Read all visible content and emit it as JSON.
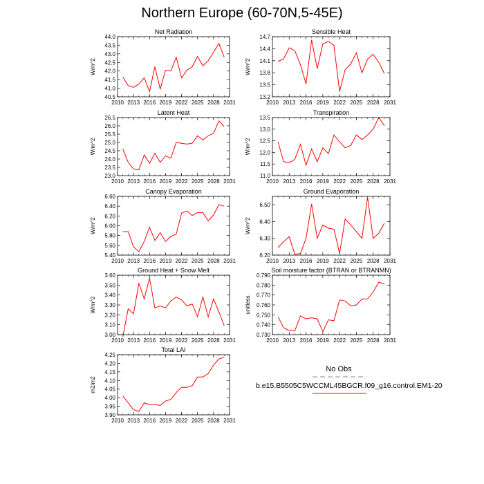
{
  "title": "Northern Europe (60-70N,5-45E)",
  "colors": {
    "case_line": "#ff0000",
    "obs_line": "#a0a0c0",
    "axis": "#000000"
  },
  "legend": {
    "obs_label": "No Obs",
    "case_label": "b.e15.B5505C5WCCML45BGCR.f09_g16.control.EM1-20"
  },
  "chart_data": [
    {
      "type": "line",
      "title": "Net Radiation",
      "xlabel": "",
      "ylabel": "W/m^2",
      "xlim": [
        2010,
        2031
      ],
      "ylim": [
        40.5,
        44.0
      ],
      "xticks": [
        2010,
        2013,
        2016,
        2019,
        2022,
        2025,
        2028,
        2031
      ],
      "yticks": [
        40.5,
        41.0,
        41.5,
        42.0,
        42.5,
        43.0,
        43.5,
        44.0
      ],
      "ydec": 1,
      "x": [
        2011,
        2012,
        2013,
        2014,
        2015,
        2016,
        2017,
        2018,
        2019,
        2020,
        2021,
        2022,
        2023,
        2024,
        2025,
        2026,
        2027,
        2028,
        2029,
        2030
      ],
      "series": [
        {
          "values": [
            41.65,
            41.15,
            41.05,
            41.25,
            41.6,
            40.8,
            42.25,
            40.95,
            42.05,
            42.0,
            42.8,
            41.6,
            42.05,
            42.25,
            42.85,
            42.3,
            42.6,
            43.1,
            43.6,
            42.8
          ]
        }
      ]
    },
    {
      "type": "line",
      "title": "Sensible Heat",
      "xlabel": "",
      "ylabel": "W/m^2",
      "xlim": [
        2010,
        2031
      ],
      "ylim": [
        13.2,
        14.7
      ],
      "xticks": [
        2010,
        2013,
        2016,
        2019,
        2022,
        2025,
        2028,
        2031
      ],
      "yticks": [
        13.2,
        13.5,
        13.8,
        14.1,
        14.4,
        14.7
      ],
      "ydec": 1,
      "x": [
        2011,
        2012,
        2013,
        2014,
        2015,
        2016,
        2017,
        2018,
        2019,
        2020,
        2021,
        2022,
        2023,
        2024,
        2025,
        2026,
        2027,
        2028,
        2029,
        2030
      ],
      "series": [
        {
          "values": [
            14.08,
            14.15,
            14.42,
            14.35,
            14.0,
            13.52,
            14.62,
            13.9,
            14.52,
            14.58,
            14.48,
            13.33,
            13.88,
            14.02,
            14.3,
            13.8,
            14.14,
            14.26,
            14.06,
            13.78
          ]
        }
      ]
    },
    {
      "type": "line",
      "title": "Latent Heat",
      "xlabel": "",
      "ylabel": "W/m^2",
      "xlim": [
        2010,
        2031
      ],
      "ylim": [
        23.0,
        26.5
      ],
      "xticks": [
        2010,
        2013,
        2016,
        2019,
        2022,
        2025,
        2028,
        2031
      ],
      "yticks": [
        23.0,
        23.5,
        24.0,
        24.5,
        25.0,
        25.5,
        26.0,
        26.5
      ],
      "ydec": 1,
      "x": [
        2011,
        2012,
        2013,
        2014,
        2015,
        2016,
        2017,
        2018,
        2019,
        2020,
        2021,
        2022,
        2023,
        2024,
        2025,
        2026,
        2027,
        2028,
        2029,
        2030
      ],
      "series": [
        {
          "values": [
            24.6,
            23.8,
            23.4,
            23.35,
            24.25,
            23.75,
            24.35,
            23.8,
            24.2,
            24.05,
            25.0,
            24.95,
            24.9,
            24.95,
            25.4,
            25.15,
            25.4,
            25.55,
            26.3,
            25.95
          ]
        }
      ]
    },
    {
      "type": "line",
      "title": "Transpiration",
      "xlabel": "",
      "ylabel": "W/m^2",
      "xlim": [
        2010,
        2031
      ],
      "ylim": [
        11.0,
        13.5
      ],
      "xticks": [
        2010,
        2013,
        2016,
        2019,
        2022,
        2025,
        2028,
        2031
      ],
      "yticks": [
        11.0,
        11.5,
        12.0,
        12.5,
        13.0,
        13.5
      ],
      "ydec": 1,
      "x": [
        2011,
        2012,
        2013,
        2014,
        2015,
        2016,
        2017,
        2018,
        2019,
        2020,
        2021,
        2022,
        2023,
        2024,
        2025,
        2026,
        2027,
        2028,
        2029,
        2030
      ],
      "series": [
        {
          "values": [
            12.45,
            11.6,
            11.55,
            11.7,
            12.35,
            11.45,
            12.15,
            11.6,
            12.2,
            11.95,
            12.75,
            12.45,
            12.2,
            12.3,
            12.75,
            12.55,
            12.75,
            13.0,
            13.5,
            13.15
          ]
        }
      ]
    },
    {
      "type": "line",
      "title": "Canopy Evaporation",
      "xlabel": "",
      "ylabel": "W/m^2",
      "xlim": [
        2010,
        2031
      ],
      "ylim": [
        5.4,
        6.6
      ],
      "xticks": [
        2010,
        2013,
        2016,
        2019,
        2022,
        2025,
        2028,
        2031
      ],
      "yticks": [
        5.4,
        5.6,
        5.8,
        6.0,
        6.2,
        6.4,
        6.6
      ],
      "ydec": 2,
      "x": [
        2011,
        2012,
        2013,
        2014,
        2015,
        2016,
        2017,
        2018,
        2019,
        2020,
        2021,
        2022,
        2023,
        2024,
        2025,
        2026,
        2027,
        2028,
        2029,
        2030
      ],
      "series": [
        {
          "values": [
            5.88,
            5.88,
            5.57,
            5.47,
            5.68,
            5.97,
            5.7,
            5.86,
            5.68,
            5.78,
            5.83,
            6.26,
            6.3,
            6.21,
            6.27,
            6.27,
            6.1,
            6.22,
            6.43,
            6.4
          ]
        }
      ]
    },
    {
      "type": "line",
      "title": "Ground Evaporation",
      "xlabel": "",
      "ylabel": "W/m^2",
      "xlim": [
        2010,
        2031
      ],
      "ylim": [
        6.2,
        6.55
      ],
      "xticks": [
        2010,
        2013,
        2016,
        2019,
        2022,
        2025,
        2028,
        2031
      ],
      "yticks": [
        6.2,
        6.3,
        6.4,
        6.5
      ],
      "ydec": 2,
      "x": [
        2011,
        2012,
        2013,
        2014,
        2015,
        2016,
        2017,
        2018,
        2019,
        2020,
        2021,
        2022,
        2023,
        2024,
        2025,
        2026,
        2027,
        2028,
        2029,
        2030
      ],
      "series": [
        {
          "values": [
            6.245,
            6.28,
            6.31,
            6.205,
            6.21,
            6.3,
            6.505,
            6.3,
            6.38,
            6.36,
            6.355,
            6.21,
            6.415,
            6.38,
            6.34,
            6.3,
            6.545,
            6.3,
            6.33,
            6.39
          ]
        }
      ]
    },
    {
      "type": "line",
      "title": "Ground Heat + Snow Melt",
      "xlabel": "",
      "ylabel": "W/m^2",
      "xlim": [
        2010,
        2031
      ],
      "ylim": [
        3.0,
        3.6
      ],
      "xticks": [
        2010,
        2013,
        2016,
        2019,
        2022,
        2025,
        2028,
        2031
      ],
      "yticks": [
        3.0,
        3.1,
        3.2,
        3.3,
        3.4,
        3.5,
        3.6
      ],
      "ydec": 2,
      "x": [
        2011,
        2012,
        2013,
        2014,
        2015,
        2016,
        2017,
        2018,
        2019,
        2020,
        2021,
        2022,
        2023,
        2024,
        2025,
        2026,
        2027,
        2028,
        2029,
        2030
      ],
      "series": [
        {
          "values": [
            2.98,
            3.26,
            3.21,
            3.52,
            3.36,
            3.57,
            3.27,
            3.29,
            3.27,
            3.34,
            3.38,
            3.35,
            3.29,
            3.31,
            3.18,
            3.38,
            3.18,
            3.36,
            3.23,
            3.09
          ]
        }
      ]
    },
    {
      "type": "line",
      "title": "Soil moisture factor (BTRAN or BTRANMN)",
      "xlabel": "",
      "ylabel": "unitless",
      "xlim": [
        2010,
        2031
      ],
      "ylim": [
        0.73,
        0.79
      ],
      "xticks": [
        2010,
        2013,
        2016,
        2019,
        2022,
        2025,
        2028,
        2031
      ],
      "yticks": [
        0.73,
        0.74,
        0.75,
        0.76,
        0.77,
        0.78,
        0.79
      ],
      "ydec": 3,
      "x": [
        2011,
        2012,
        2013,
        2014,
        2015,
        2016,
        2017,
        2018,
        2019,
        2020,
        2021,
        2022,
        2023,
        2024,
        2025,
        2026,
        2027,
        2028,
        2029,
        2030
      ],
      "series": [
        {
          "values": [
            0.748,
            0.737,
            0.734,
            0.734,
            0.749,
            0.746,
            0.747,
            0.746,
            0.733,
            0.745,
            0.744,
            0.765,
            0.764,
            0.759,
            0.76,
            0.766,
            0.766,
            0.773,
            0.783,
            0.781
          ]
        }
      ]
    },
    {
      "type": "line",
      "title": "Total LAI",
      "xlabel": "",
      "ylabel": "m2/m2",
      "xlim": [
        2010,
        2031
      ],
      "ylim": [
        3.9,
        4.25
      ],
      "xticks": [
        2010,
        2013,
        2016,
        2019,
        2022,
        2025,
        2028,
        2031
      ],
      "yticks": [
        3.9,
        3.95,
        4.0,
        4.05,
        4.1,
        4.15,
        4.2,
        4.25
      ],
      "ydec": 2,
      "x": [
        2011,
        2012,
        2013,
        2014,
        2015,
        2016,
        2017,
        2018,
        2019,
        2020,
        2021,
        2022,
        2023,
        2024,
        2025,
        2026,
        2027,
        2028,
        2029,
        2030
      ],
      "series": [
        {
          "values": [
            4.01,
            3.97,
            3.93,
            3.92,
            3.97,
            3.96,
            3.96,
            3.955,
            3.98,
            3.99,
            4.03,
            4.06,
            4.06,
            4.07,
            4.12,
            4.12,
            4.14,
            4.19,
            4.225,
            4.235
          ]
        }
      ]
    }
  ]
}
